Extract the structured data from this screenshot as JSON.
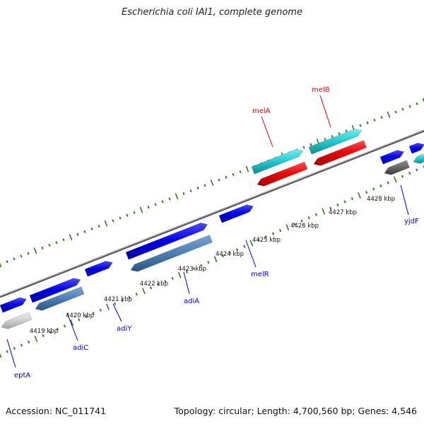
{
  "title": "Escherichia coli IAI1, complete genome",
  "footer": {
    "accession": "Accession: NC_011741",
    "summary": "Topology: circular; Length: 4,700,560 bp; Genes: 4,546"
  },
  "tick_labels": [
    "4419 kbp",
    "4420 kbp",
    "4421 kbp",
    "4422 kbp",
    "4423 kbp",
    "4424 kbp",
    "4425 kbp",
    "4426 kbp",
    "4427 kbp",
    "4428 kbp"
  ],
  "genes": [
    {
      "name": "eptA",
      "color": "#0000cc"
    },
    {
      "name": "adiC",
      "color": "#0000cc"
    },
    {
      "name": "adiY",
      "color": "#0000cc"
    },
    {
      "name": "adiA",
      "color": "#0000cc"
    },
    {
      "name": "melR",
      "color": "#0000cc"
    },
    {
      "name": "yjdF",
      "color": "#0000cc"
    },
    {
      "name": "melA",
      "color": "#dd0000"
    },
    {
      "name": "melB",
      "color": "#dd0000"
    }
  ],
  "colors": {
    "backbone": "#8a8a8a",
    "tick_green": "#2e7d1e",
    "feature_blue": "#1010e8",
    "feature_steel": "#4a7fb5",
    "feature_cyan": "#22c8d0",
    "feature_red": "#f00000",
    "feature_gray": "#d0d0d0",
    "feature_darkgray": "#666666"
  }
}
